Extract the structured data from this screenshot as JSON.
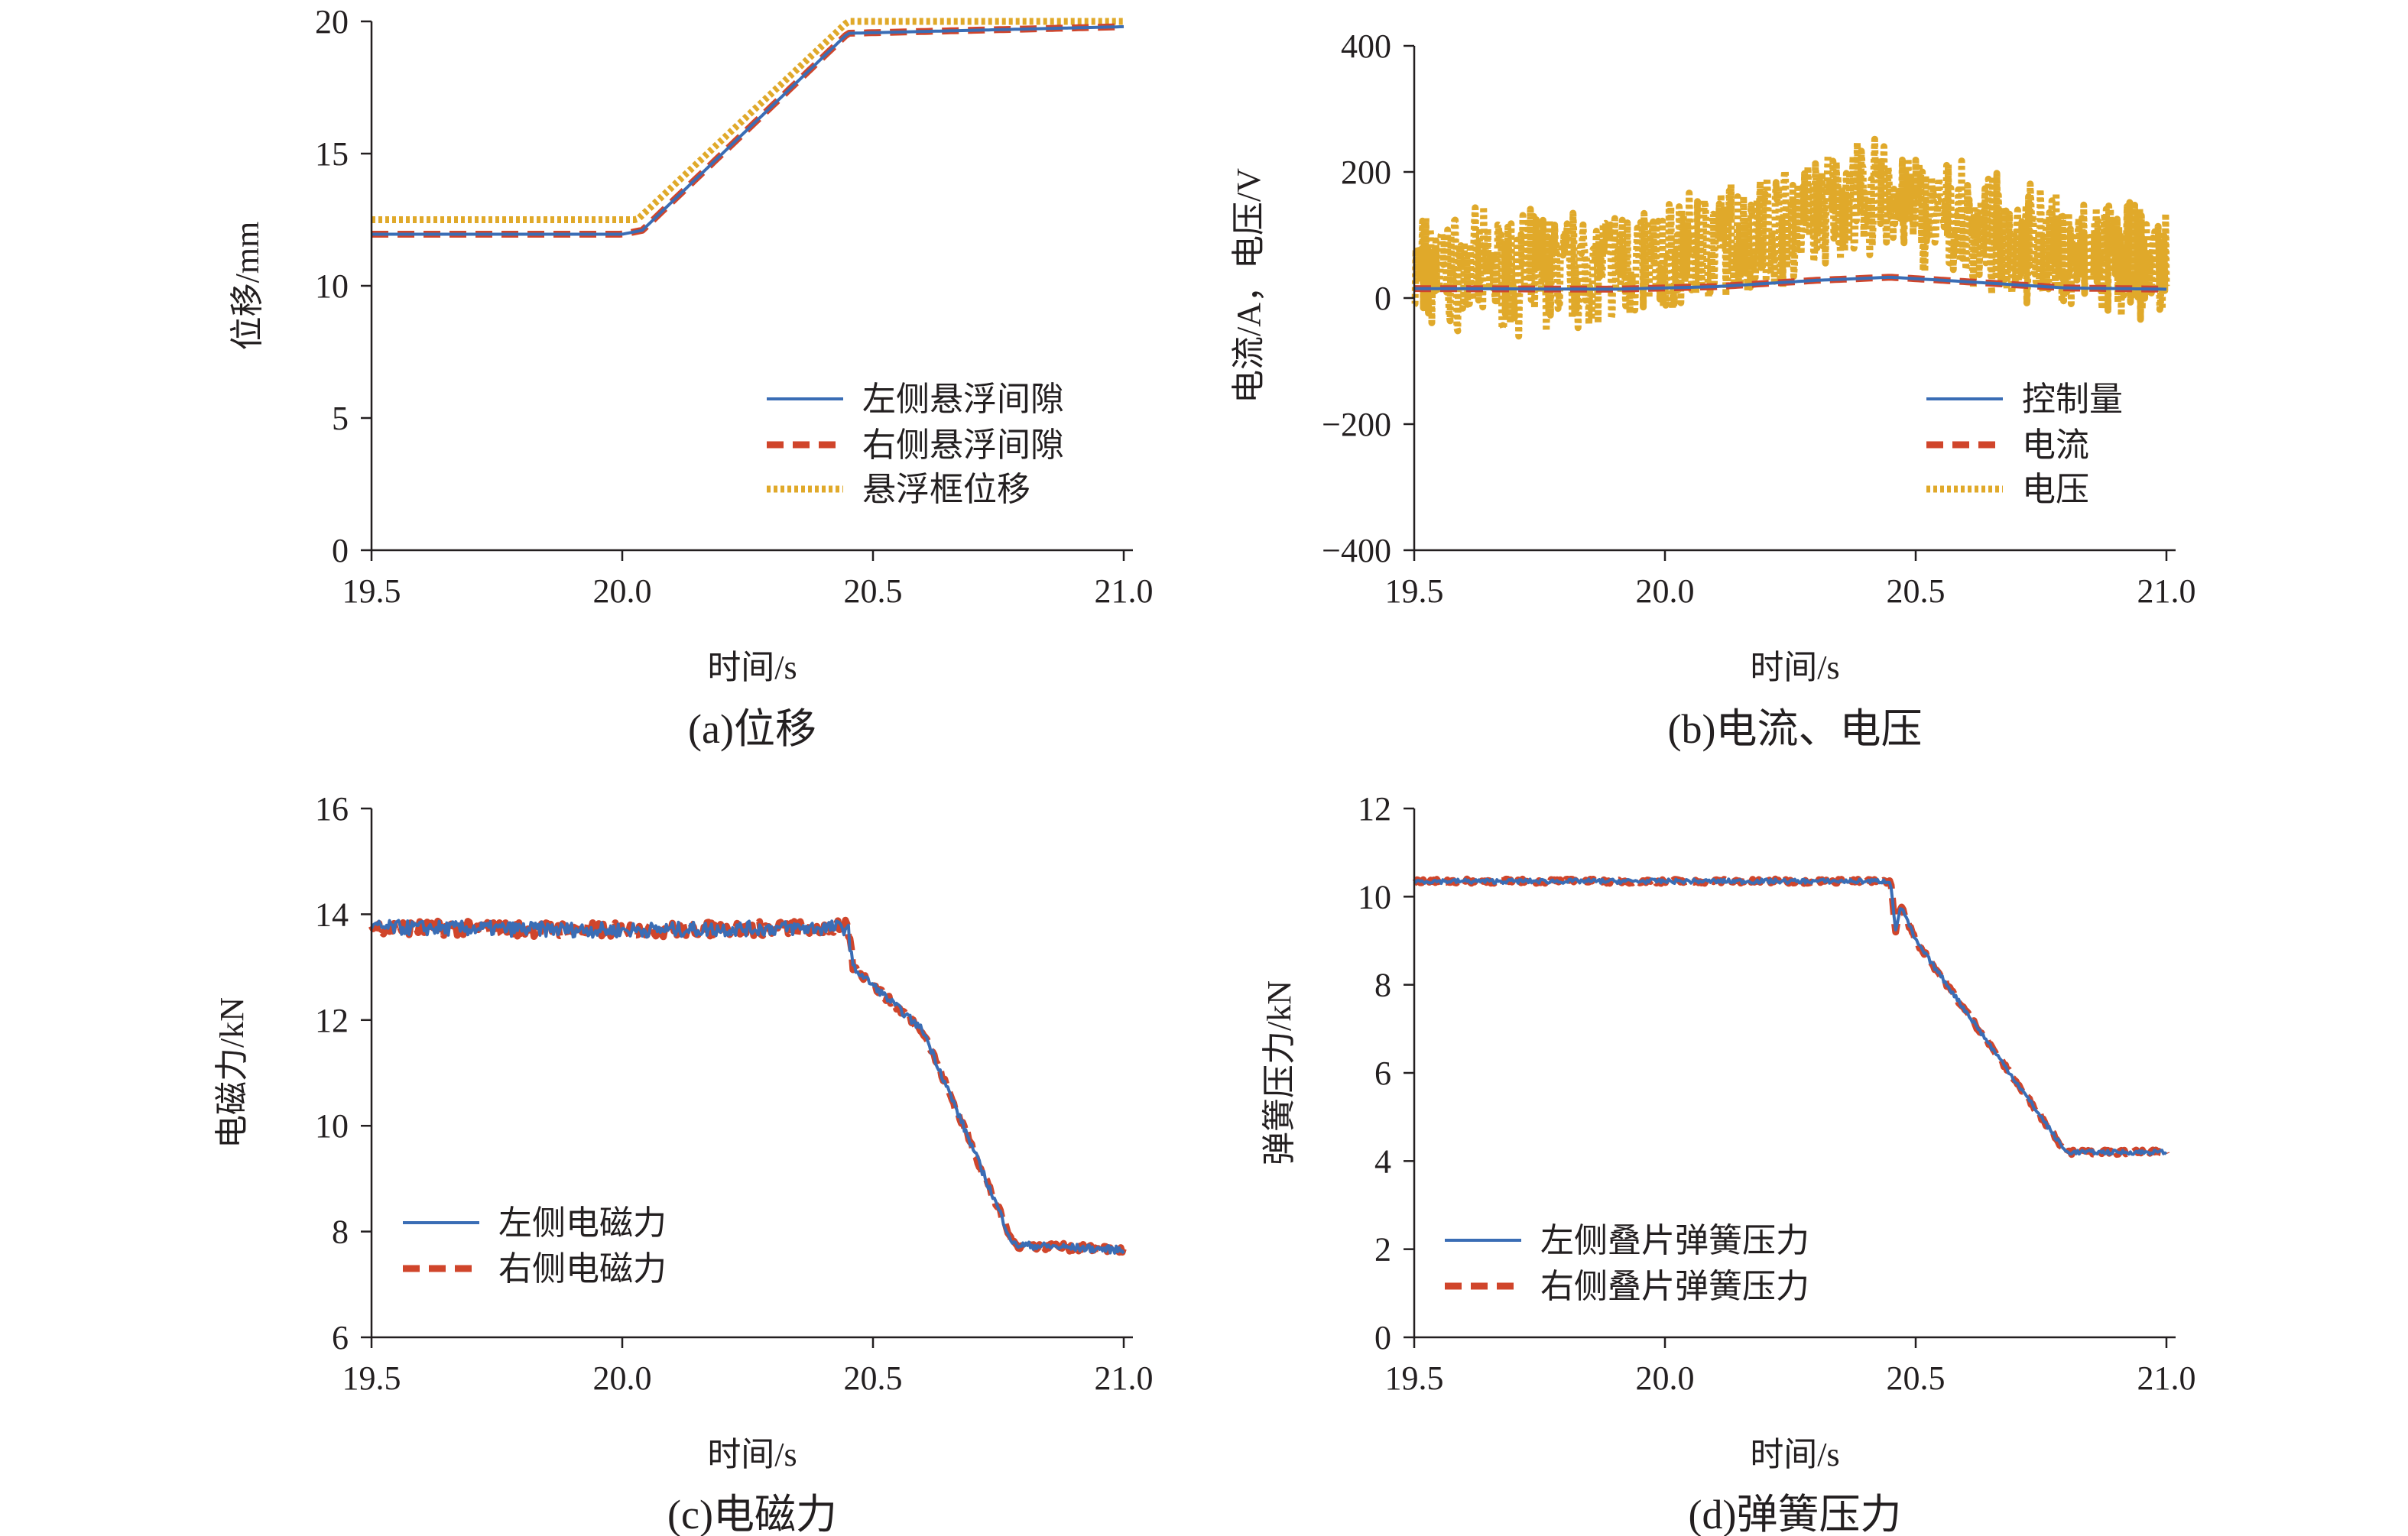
{
  "chart_data": [
    {
      "type": "line",
      "caption": "(a)位移",
      "xlabel": "时间/s",
      "ylabel": "位移/mm",
      "xlim": [
        19.5,
        21.0
      ],
      "ylim": [
        0,
        20
      ],
      "xticks": [
        "19.5",
        "20.0",
        "20.5",
        "21.0"
      ],
      "yticks": [
        "0",
        "5",
        "10",
        "15",
        "20"
      ],
      "legend_position": "bottom-right",
      "series": [
        {
          "name": "左侧悬浮间隙",
          "style": "solid",
          "color": "#3a6db5",
          "points": [
            [
              19.5,
              11.95
            ],
            [
              20.0,
              11.95
            ],
            [
              20.04,
              12.1
            ],
            [
              20.45,
              19.55
            ],
            [
              21.0,
              19.8
            ]
          ]
        },
        {
          "name": "右侧悬浮间隙",
          "style": "dashed",
          "color": "#d0452b",
          "points": [
            [
              19.5,
              11.95
            ],
            [
              20.0,
              11.95
            ],
            [
              20.04,
              12.1
            ],
            [
              20.45,
              19.55
            ],
            [
              21.0,
              19.8
            ]
          ]
        },
        {
          "name": "悬浮框位移",
          "style": "dotted",
          "color": "#e0a92a",
          "points": [
            [
              19.5,
              12.5
            ],
            [
              20.03,
              12.5
            ],
            [
              20.45,
              20.0
            ],
            [
              21.0,
              20.0
            ]
          ]
        }
      ]
    },
    {
      "type": "line",
      "caption": "(b)电流、电压",
      "xlabel": "时间/s",
      "ylabel": "电流/A，电压/V",
      "xlim": [
        19.5,
        21.0
      ],
      "ylim": [
        -400,
        400
      ],
      "xticks": [
        "19.5",
        "20.0",
        "20.5",
        "21.0"
      ],
      "yticks": [
        "400",
        "200",
        "0",
        "−200",
        "−400"
      ],
      "legend_position": "bottom-right",
      "series": [
        {
          "name": "控制量",
          "style": "solid",
          "color": "#3a6db5",
          "points": [
            [
              19.5,
              15
            ],
            [
              19.9,
              14
            ],
            [
              20.1,
              18
            ],
            [
              20.3,
              28
            ],
            [
              20.45,
              33
            ],
            [
              20.6,
              26
            ],
            [
              20.8,
              16
            ],
            [
              21.0,
              14
            ]
          ]
        },
        {
          "name": "电流",
          "style": "dashed",
          "color": "#d0452b",
          "points": [
            [
              19.5,
              15
            ],
            [
              19.9,
              14
            ],
            [
              20.1,
              18
            ],
            [
              20.3,
              28
            ],
            [
              20.45,
              33
            ],
            [
              20.6,
              26
            ],
            [
              20.8,
              16
            ],
            [
              21.0,
              14
            ]
          ]
        },
        {
          "name": "电压",
          "style": "dotted",
          "color": "#e0a92a",
          "noisy": true,
          "points": [
            [
              19.5,
              40
            ],
            [
              19.8,
              45
            ],
            [
              20.0,
              60
            ],
            [
              20.2,
              110
            ],
            [
              20.35,
              150
            ],
            [
              20.45,
              160
            ],
            [
              20.6,
              110
            ],
            [
              20.8,
              70
            ],
            [
              21.0,
              50
            ]
          ]
        }
      ]
    },
    {
      "type": "line",
      "caption": "(c)电磁力",
      "xlabel": "时间/s",
      "ylabel": "电磁力/kN",
      "xlim": [
        19.5,
        21.0
      ],
      "ylim": [
        6,
        16
      ],
      "xticks": [
        "19.5",
        "20.0",
        "20.5",
        "21.0"
      ],
      "yticks": [
        "6",
        "8",
        "10",
        "12",
        "14",
        "16"
      ],
      "legend_position": "bottom-left",
      "series": [
        {
          "name": "左侧电磁力",
          "style": "solid",
          "color": "#3a6db5",
          "points": [
            [
              19.5,
              13.75
            ],
            [
              20.0,
              13.7
            ],
            [
              20.45,
              13.75
            ],
            [
              20.46,
              13.0
            ],
            [
              20.6,
              11.8
            ],
            [
              20.78,
              7.75
            ],
            [
              21.0,
              7.65
            ]
          ]
        },
        {
          "name": "右侧电磁力",
          "style": "dashed",
          "color": "#d0452b",
          "points": [
            [
              19.5,
              13.75
            ],
            [
              20.0,
              13.7
            ],
            [
              20.45,
              13.75
            ],
            [
              20.46,
              13.0
            ],
            [
              20.6,
              11.8
            ],
            [
              20.78,
              7.75
            ],
            [
              21.0,
              7.65
            ]
          ]
        }
      ]
    },
    {
      "type": "line",
      "caption": "(d)弹簧压力",
      "xlabel": "时间/s",
      "ylabel": "弹簧压力/kN",
      "xlim": [
        19.5,
        21.0
      ],
      "ylim": [
        0,
        12
      ],
      "xticks": [
        "19.5",
        "20.0",
        "20.5",
        "21.0"
      ],
      "yticks": [
        "0",
        "2",
        "4",
        "6",
        "8",
        "10",
        "12"
      ],
      "legend_position": "bottom-left",
      "series": [
        {
          "name": "左侧叠片弹簧压力",
          "style": "solid",
          "color": "#3a6db5",
          "points": [
            [
              19.5,
              10.35
            ],
            [
              20.45,
              10.35
            ],
            [
              20.46,
              9.2
            ],
            [
              20.47,
              9.8
            ],
            [
              20.5,
              9.0
            ],
            [
              20.8,
              4.2
            ],
            [
              21.0,
              4.2
            ]
          ]
        },
        {
          "name": "右侧叠片弹簧压力",
          "style": "dashed",
          "color": "#d0452b",
          "points": [
            [
              19.5,
              10.35
            ],
            [
              20.45,
              10.35
            ],
            [
              20.46,
              9.2
            ],
            [
              20.47,
              9.8
            ],
            [
              20.5,
              9.0
            ],
            [
              20.8,
              4.2
            ],
            [
              21.0,
              4.2
            ]
          ]
        }
      ]
    }
  ]
}
